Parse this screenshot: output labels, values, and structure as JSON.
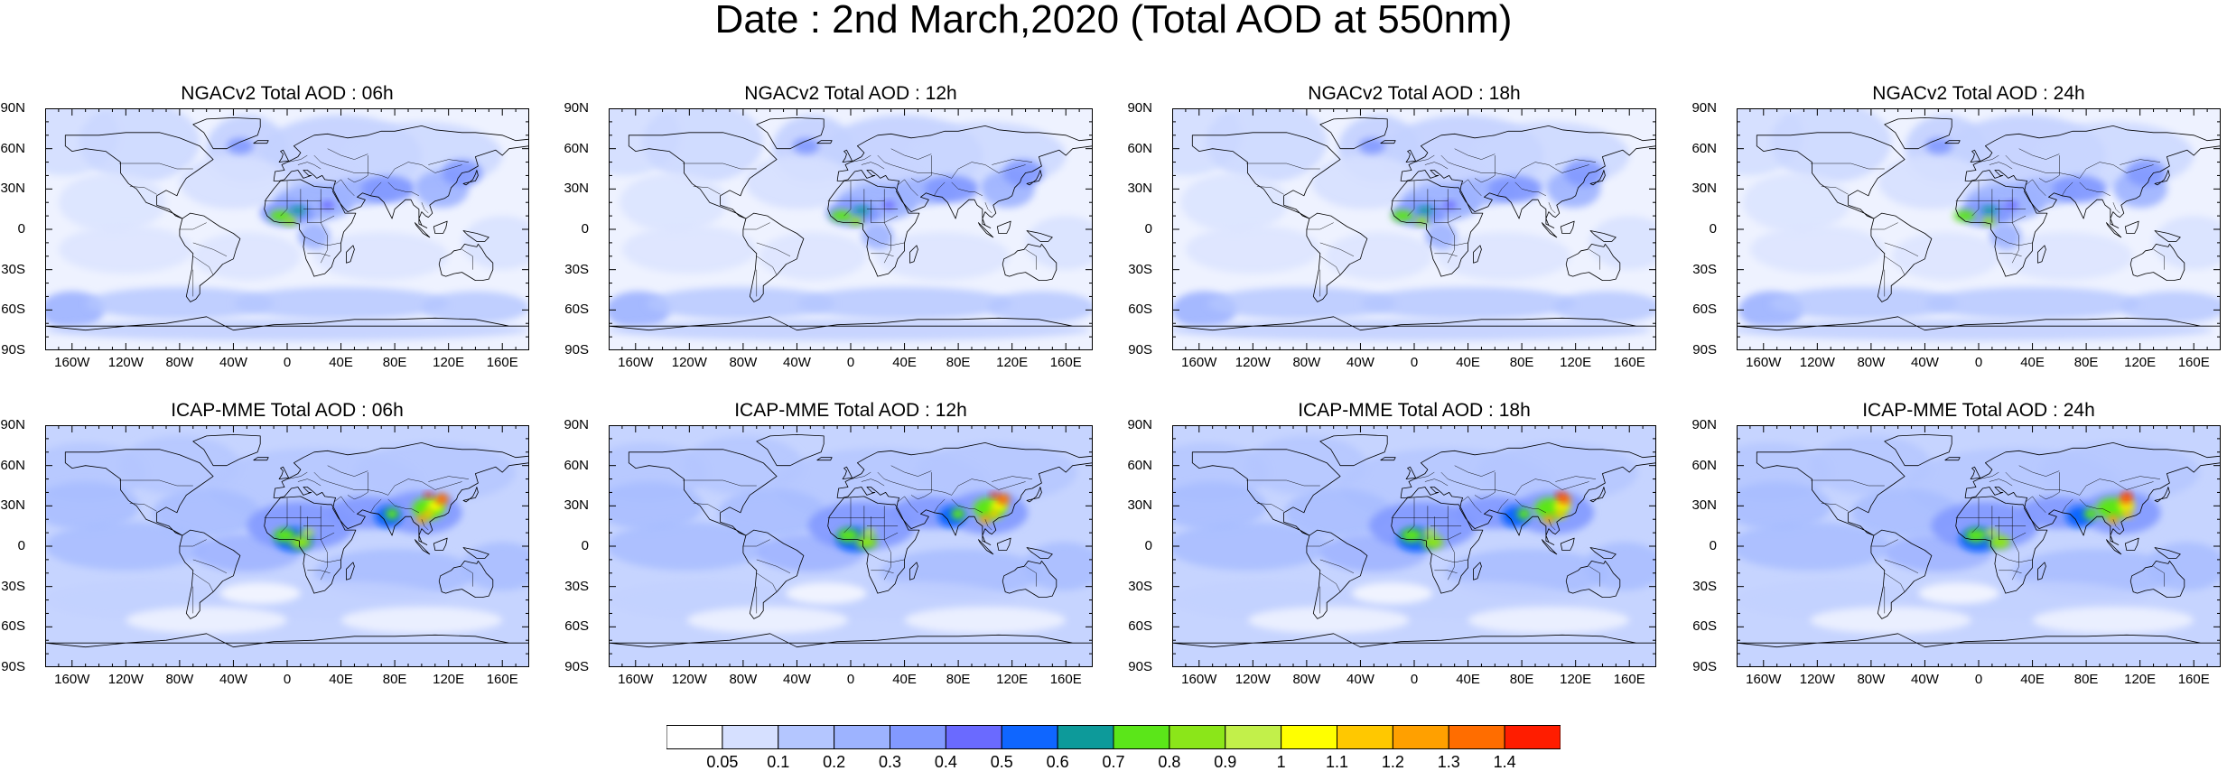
{
  "title": "Date : 2nd March,2020 (Total AOD at 550nm)",
  "panels": [
    {
      "title": "NGACv2 Total AOD : 06h",
      "model": "NGACv2",
      "hour": "06h"
    },
    {
      "title": "NGACv2 Total AOD : 12h",
      "model": "NGACv2",
      "hour": "12h"
    },
    {
      "title": "NGACv2 Total AOD : 18h",
      "model": "NGACv2",
      "hour": "18h"
    },
    {
      "title": "NGACv2 Total AOD : 24h",
      "model": "NGACv2",
      "hour": "24h"
    },
    {
      "title": "ICAP-MME Total AOD : 06h",
      "model": "ICAP-MME",
      "hour": "06h"
    },
    {
      "title": "ICAP-MME Total AOD : 12h",
      "model": "ICAP-MME",
      "hour": "12h"
    },
    {
      "title": "ICAP-MME Total AOD : 18h",
      "model": "ICAP-MME",
      "hour": "18h"
    },
    {
      "title": "ICAP-MME Total AOD : 24h",
      "model": "ICAP-MME",
      "hour": "24h"
    }
  ],
  "lat_labels": [
    "90N",
    "60N",
    "30N",
    "0",
    "30S",
    "60S",
    "90S"
  ],
  "lon_labels": [
    "160W",
    "120W",
    "80W",
    "40W",
    "0",
    "40E",
    "80E",
    "120E",
    "160E"
  ],
  "colorbar": {
    "labels": [
      "0.05",
      "0.1",
      "0.2",
      "0.3",
      "0.4",
      "0.5",
      "0.6",
      "0.7",
      "0.8",
      "0.9",
      "1",
      "1.1",
      "1.2",
      "1.3",
      "1.4"
    ],
    "colors": [
      "#ffffff",
      "#d6e0ff",
      "#b4c6ff",
      "#9db3ff",
      "#8299ff",
      "#6a6aff",
      "#0f66ff",
      "#0d9a9a",
      "#5be619",
      "#8be619",
      "#c2f04a",
      "#ffff00",
      "#ffc800",
      "#ffa000",
      "#ff6d00",
      "#ff1d00"
    ]
  }
}
